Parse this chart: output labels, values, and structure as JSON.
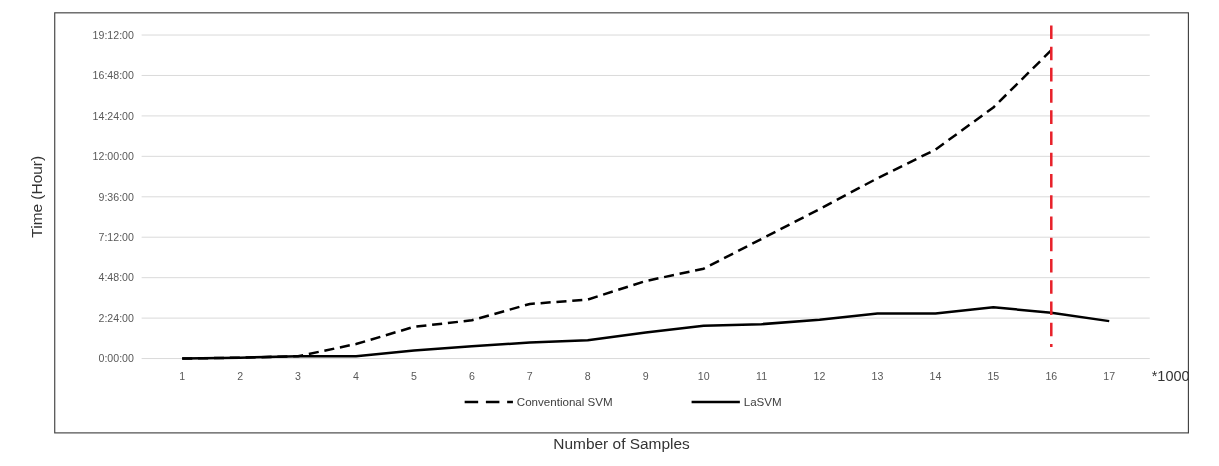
{
  "chart_data": {
    "type": "line",
    "xlabel": "Number of Samples",
    "ylabel": "Time (Hour)",
    "x": [
      1,
      2,
      3,
      4,
      5,
      6,
      7,
      8,
      9,
      10,
      11,
      12,
      13,
      14,
      15,
      16,
      17
    ],
    "xlim": [
      0.3,
      17.7
    ],
    "xticks": [
      1,
      2,
      3,
      4,
      5,
      6,
      7,
      8,
      9,
      10,
      11,
      12,
      13,
      14,
      15,
      16,
      17
    ],
    "ylim": [
      0,
      19.2
    ],
    "yticks": [
      {
        "value": 0,
        "label": "0:00:00"
      },
      {
        "value": 2.4,
        "label": "2:24:00"
      },
      {
        "value": 4.8,
        "label": "4:48:00"
      },
      {
        "value": 7.2,
        "label": "7:12:00"
      },
      {
        "value": 9.6,
        "label": "9:36:00"
      },
      {
        "value": 12,
        "label": "12:00:00"
      },
      {
        "value": 14.4,
        "label": "14:24:00"
      },
      {
        "value": 16.8,
        "label": "16:48:00"
      },
      {
        "value": 19.2,
        "label": "19:12:00"
      }
    ],
    "series": [
      {
        "name": "Conventional SVM",
        "color": "#000000",
        "line_style": "dashed",
        "values": [
          0,
          0.05,
          0.14,
          0.86,
          1.88,
          2.27,
          3.24,
          3.5,
          4.6,
          5.33,
          7.1,
          8.87,
          10.7,
          12.4,
          14.9,
          18.3,
          null
        ]
      },
      {
        "name": "LaSVM",
        "color": "#000000",
        "line_style": "solid",
        "values": [
          0,
          0.05,
          0.14,
          0.14,
          0.48,
          0.73,
          0.95,
          1.09,
          1.54,
          1.95,
          2.04,
          2.3,
          2.68,
          2.68,
          3.04,
          2.72,
          2.22
        ]
      }
    ],
    "ref_lines": [
      {
        "axis": "x",
        "value": 16,
        "color": "#e8212a",
        "line_style": "dashed"
      }
    ],
    "annotations": [
      "*1000"
    ],
    "grid": "y",
    "legend": "bottom",
    "marker": "none"
  }
}
